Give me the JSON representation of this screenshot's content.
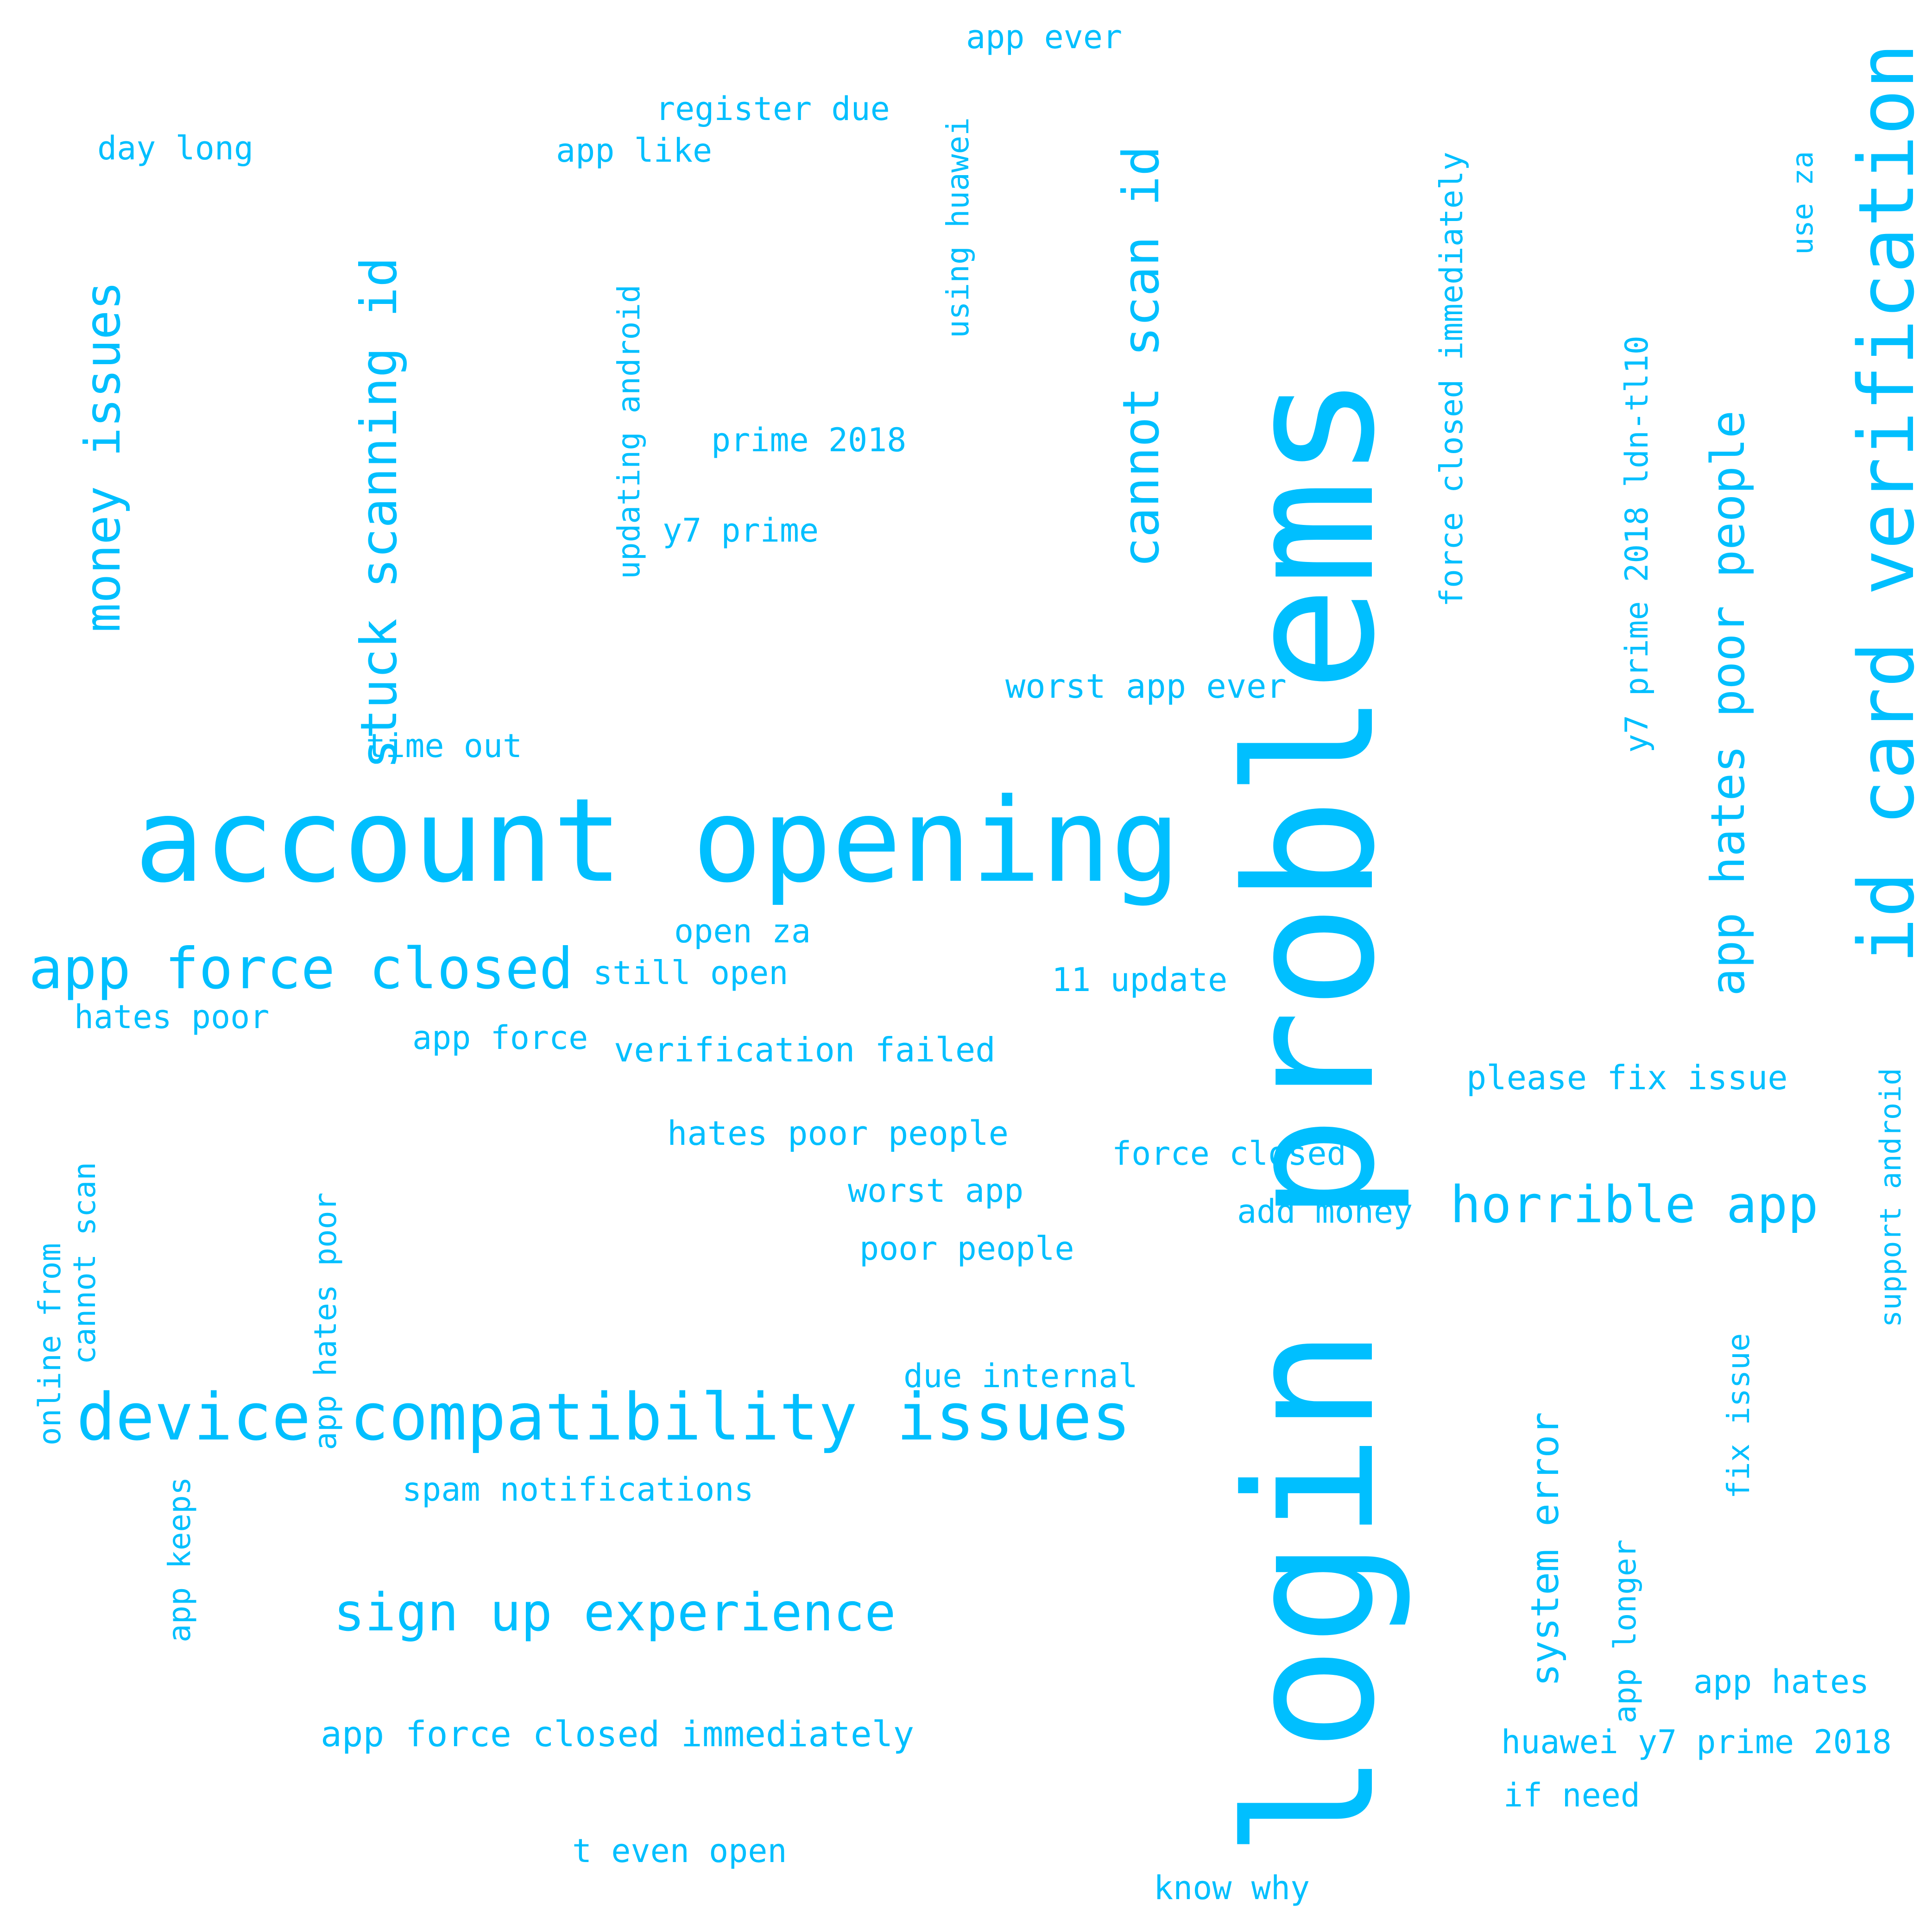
{
  "color": "#00bfff",
  "words": [
    {
      "t": "login problems",
      "v": true
    },
    {
      "t": "account opening",
      "v": false
    },
    {
      "t": "id card verification",
      "v": true
    },
    {
      "t": "device compatibility issues",
      "v": false
    },
    {
      "t": "app force closed",
      "v": false
    },
    {
      "t": "sign up experience",
      "v": false
    },
    {
      "t": "stuck scanning id",
      "v": true
    },
    {
      "t": "cannot scan id",
      "v": true
    },
    {
      "t": "app hates poor people",
      "v": true
    },
    {
      "t": "horrible app",
      "v": false
    },
    {
      "t": "money issues",
      "v": true
    },
    {
      "t": "y7 prime 2018 ldn-tl10",
      "v": true
    },
    {
      "t": "force closed immediately",
      "v": true
    },
    {
      "t": "app force closed immediately",
      "v": false
    },
    {
      "t": "system error",
      "v": true
    },
    {
      "t": "worst app ever",
      "v": false
    },
    {
      "t": "verification failed",
      "v": false
    },
    {
      "t": "hates poor people",
      "v": false
    },
    {
      "t": "huawei y7 prime 2018",
      "v": false
    },
    {
      "t": "please fix issue",
      "v": false
    },
    {
      "t": "spam notifications",
      "v": false
    },
    {
      "t": "app force",
      "v": false
    },
    {
      "t": "still open",
      "v": false
    },
    {
      "t": "open za",
      "v": false
    },
    {
      "t": "11 update",
      "v": false
    },
    {
      "t": "hates poor",
      "v": false
    },
    {
      "t": "force closed",
      "v": false
    },
    {
      "t": "add money",
      "v": false
    },
    {
      "t": "poor people",
      "v": false
    },
    {
      "t": "due internal",
      "v": false
    },
    {
      "t": "worst app",
      "v": false
    },
    {
      "t": "t even open",
      "v": false
    },
    {
      "t": "know why",
      "v": false
    },
    {
      "t": "if need",
      "v": false
    },
    {
      "t": "app hates",
      "v": false
    },
    {
      "t": "register due",
      "v": false
    },
    {
      "t": "app like",
      "v": false
    },
    {
      "t": "app ever",
      "v": false
    },
    {
      "t": "day long",
      "v": false
    },
    {
      "t": "prime 2018",
      "v": false
    },
    {
      "t": "y7 prime",
      "v": false
    },
    {
      "t": "time out",
      "v": false
    },
    {
      "t": "updating android",
      "v": true
    },
    {
      "t": "using huawei",
      "v": true
    },
    {
      "t": "cannot scan",
      "v": true
    },
    {
      "t": "online from",
      "v": true
    },
    {
      "t": "app hates poor",
      "v": true
    },
    {
      "t": "app keeps",
      "v": true
    },
    {
      "t": "app longer",
      "v": true
    },
    {
      "t": "fix issue",
      "v": true
    },
    {
      "t": "support android",
      "v": true
    },
    {
      "t": "use za",
      "v": true
    }
  ]
}
